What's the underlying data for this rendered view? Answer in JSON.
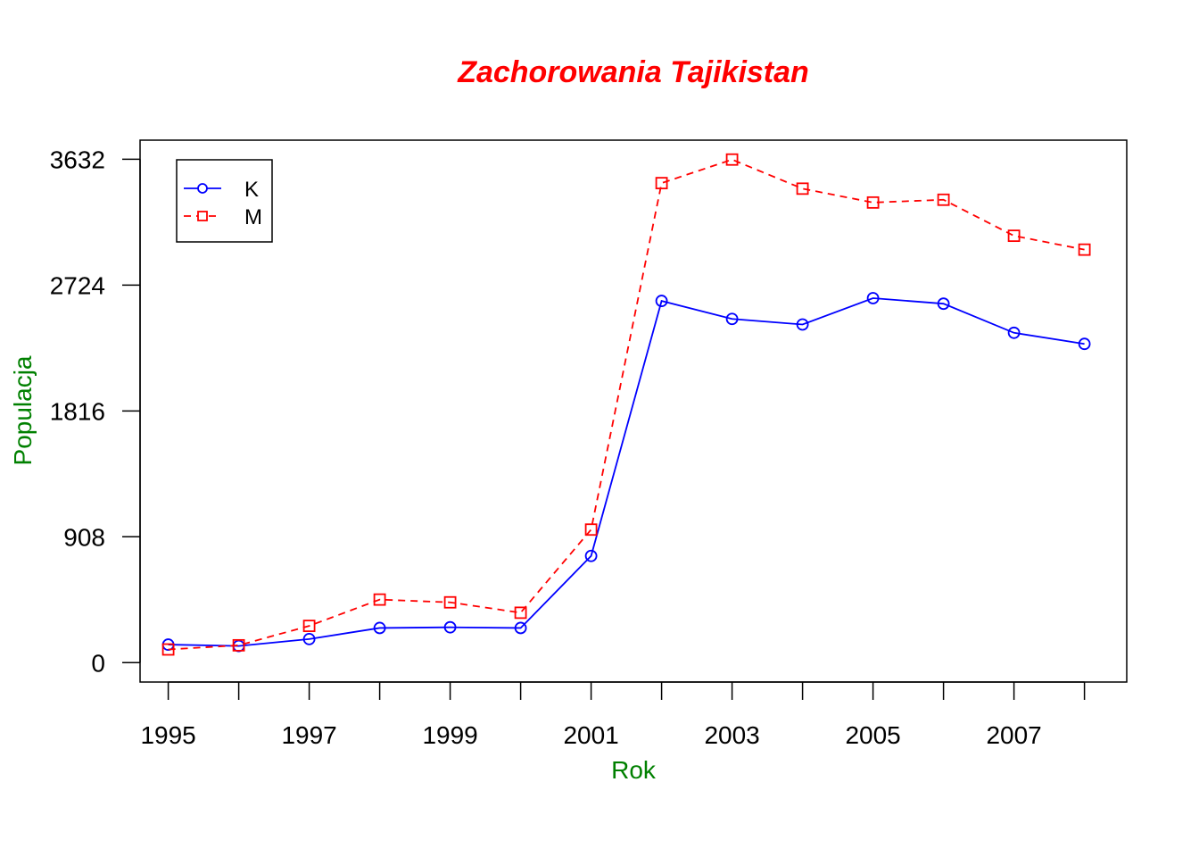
{
  "chart_data": {
    "type": "line",
    "title": "Zachorowania Tajikistan",
    "xlabel": "Rok",
    "ylabel": "Populacja",
    "x": [
      1995,
      1996,
      1997,
      1998,
      1999,
      2000,
      2001,
      2002,
      2003,
      2004,
      2005,
      2006,
      2007,
      2008
    ],
    "x_tick_labels": [
      "1995",
      "1997",
      "1999",
      "2001",
      "2003",
      "2005",
      "2007"
    ],
    "y_tick_labels": [
      "0",
      "908",
      "1816",
      "2724",
      "3632"
    ],
    "xlim": [
      1994.6,
      2008.6
    ],
    "ylim": [
      -140,
      3770
    ],
    "grid": false,
    "legend_position": "top-left",
    "series": [
      {
        "name": "K",
        "color": "#0000ff",
        "line_style": "solid",
        "marker": "circle",
        "values": [
          130,
          120,
          170,
          250,
          255,
          250,
          770,
          2610,
          2480,
          2440,
          2630,
          2590,
          2380,
          2300
        ]
      },
      {
        "name": "M",
        "color": "#ff0000",
        "line_style": "dashed",
        "marker": "square",
        "values": [
          95,
          125,
          265,
          455,
          435,
          360,
          960,
          3460,
          3630,
          3420,
          3320,
          3340,
          3080,
          2980
        ]
      }
    ],
    "colors": {
      "title": "#ff0000",
      "axis_labels": "#008000",
      "frame": "#000000"
    }
  }
}
